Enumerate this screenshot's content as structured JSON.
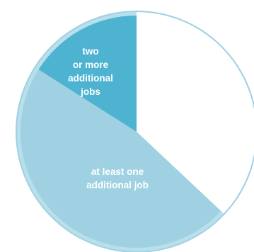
{
  "chart_data": {
    "type": "pie",
    "slices": [
      {
        "label": [
          "two",
          "or more",
          "additional",
          "jobs"
        ],
        "value": 16,
        "color": "#4db3d1"
      },
      {
        "label": [
          "at least one",
          "additional job"
        ],
        "value": 47,
        "color": "#9fd1e2"
      },
      {
        "label": [],
        "value": 37,
        "color": "#ffffff"
      }
    ],
    "inner_band_color": "#b9dfeb",
    "outline_color": "#9fd1e2"
  }
}
